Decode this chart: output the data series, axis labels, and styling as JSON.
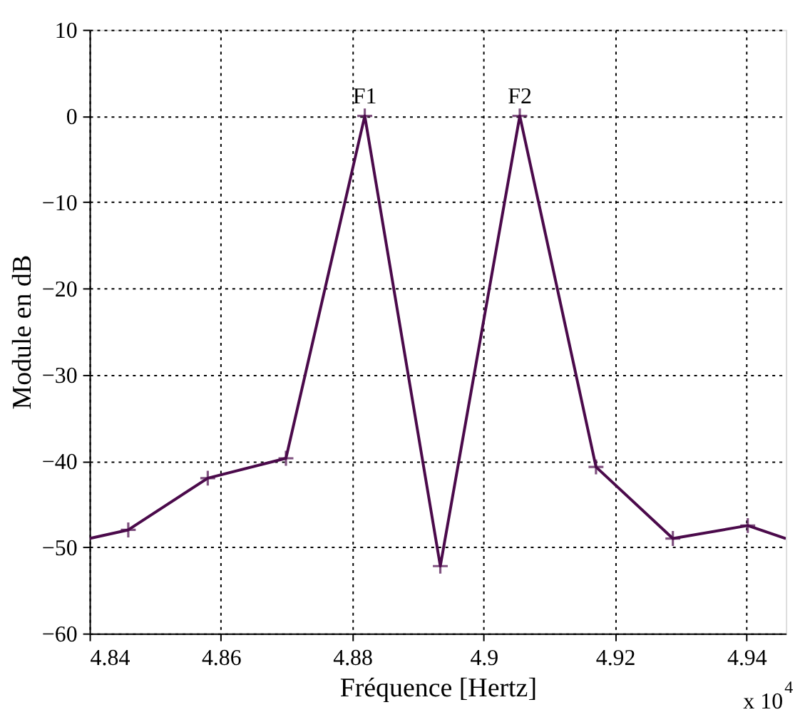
{
  "chart_data": {
    "type": "line",
    "xlabel": "Fréquence [Hertz]",
    "ylabel": "Module en dB",
    "xlim": [
      4.84,
      4.946
    ],
    "xticks": [
      4.84,
      4.86,
      4.88,
      {
        "value": 4.9,
        "label": "4.9"
      },
      4.92,
      4.94
    ],
    "ylim": [
      -60,
      10
    ],
    "yticks": [
      -60,
      -50,
      -40,
      -30,
      -20,
      -10,
      0,
      10
    ],
    "grid": true,
    "series": [
      {
        "color": "#4b0a4b",
        "marker": "none",
        "x": [
          4.84,
          4.8459,
          4.858,
          4.8699,
          4.8819,
          4.8934,
          4.9055,
          4.9171,
          4.9288,
          4.9402,
          4.946
        ],
        "values": [
          -49,
          -48,
          -42,
          -39.7,
          0,
          -52.2,
          0,
          -40.7,
          -49,
          -47.5,
          -49
        ]
      },
      {
        "type": "scatter",
        "color": "#4b0a4b",
        "marker": "cross",
        "x": [
          4.8459,
          4.858,
          4.8699,
          4.8819,
          4.8934,
          4.9055,
          4.9171,
          4.9288,
          4.9402
        ],
        "values": [
          -48,
          -42,
          -39.7,
          0,
          -52.2,
          0,
          -40.7,
          -49,
          -47.5
        ]
      }
    ],
    "annotations": [
      {
        "text": "F1",
        "x": 4.8819,
        "y": 0
      },
      {
        "text": "F2",
        "x": 4.9055,
        "y": 0
      },
      "x 10$^{4}$"
    ]
  }
}
